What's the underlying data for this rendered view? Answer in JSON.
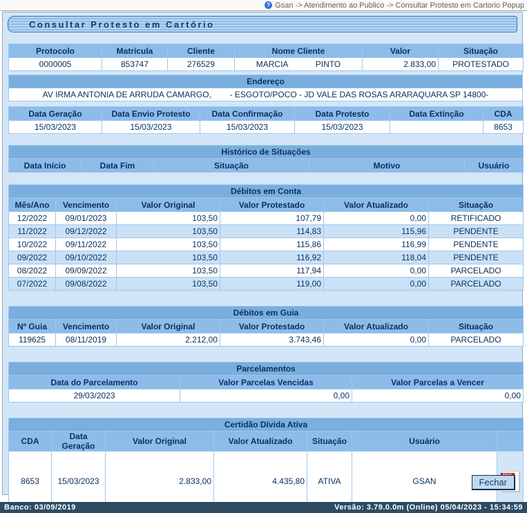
{
  "icons": {
    "help": "?"
  },
  "breadcrumb": {
    "text": "Gsan -> Atendimento ao Publico -> Consultar Protesto em Cartorio Popup"
  },
  "title": "Consultar Protesto em Cartório",
  "protesto": {
    "headers": [
      "Protocolo",
      "Matrícula",
      "Cliente",
      "Nome Cliente",
      "Valor",
      "Situação"
    ],
    "row": [
      "0000005",
      "853747",
      "276529",
      "MARCIA            PINTO",
      "2.833,00",
      "PROTESTADO"
    ]
  },
  "endereco": {
    "title": "Endereço",
    "value": "AV IRMA ANTONIA DE ARRUDA CAMARGO,        - ESGOTO/POCO - JD VALE DAS ROSAS ARARAQUARA SP 14800-"
  },
  "datas": {
    "headers": [
      "Data Geração",
      "Data Envio Protesto",
      "Data Confirmação",
      "Data Protesto",
      "Data Extinção",
      "CDA"
    ],
    "row": [
      "15/03/2023",
      "15/03/2023",
      "15/03/2023",
      "15/03/2023",
      "",
      "8653"
    ]
  },
  "historico": {
    "title": "Histórico de Situações",
    "headers": [
      "Data Início",
      "Data Fim",
      "Situação",
      "Motivo",
      "Usuário"
    ]
  },
  "debitos_conta": {
    "title": "Débitos em Conta",
    "headers": [
      "Mês/Ano",
      "Vencimento",
      "Valor Original",
      "Valor Protestado",
      "Valor Atualizado",
      "Situação"
    ],
    "rows": [
      [
        "12/2022",
        "09/01/2023",
        "103,50",
        "107,79",
        "0,00",
        "RETIFICADO"
      ],
      [
        "11/2022",
        "09/12/2022",
        "103,50",
        "114,83",
        "115,96",
        "PENDENTE"
      ],
      [
        "10/2022",
        "09/11/2022",
        "103,50",
        "115,86",
        "116,99",
        "PENDENTE"
      ],
      [
        "09/2022",
        "09/10/2022",
        "103,50",
        "116,92",
        "118,04",
        "PENDENTE"
      ],
      [
        "08/2022",
        "09/09/2022",
        "103,50",
        "117,94",
        "0,00",
        "PARCELADO"
      ],
      [
        "07/2022",
        "09/08/2022",
        "103,50",
        "119,00",
        "0,00",
        "PARCELADO"
      ]
    ]
  },
  "debitos_guia": {
    "title": "Débitos em Guia",
    "headers": [
      "Nº Guia",
      "Vencimento",
      "Valor Original",
      "Valor Protestado",
      "Valor Atualizado",
      "Situação"
    ],
    "rows": [
      [
        "119625",
        "08/11/2019",
        "2.212,00",
        "3.743,46",
        "0,00",
        "PARCELADO"
      ]
    ]
  },
  "parcelamentos": {
    "title": "Parcelamentos",
    "headers": [
      "Data do Parcelamento",
      "Valor Parcelas Vencidas",
      "Valor Parcelas a Vencer"
    ],
    "rows": [
      [
        "29/03/2023",
        "0,00",
        "0,00"
      ]
    ]
  },
  "cda": {
    "title": "Certidão Dívida Ativa",
    "headers": [
      "CDA",
      "Data\nGeração",
      "Valor Original",
      "Valor Atualizado",
      "Situação",
      "Usuário"
    ],
    "row": [
      "8653",
      "15/03/2023",
      "2.833,00",
      "4.435,80",
      "ATIVA",
      "GSAN"
    ],
    "pdf_icon_label": "PDF"
  },
  "buttons": {
    "fechar": "Fechar"
  },
  "footer": {
    "left": "Banco: 03/09/2019",
    "right": "Versão: 3.79.0.0m (Online) 05/04/2023 - 15:34:59"
  },
  "colors": {
    "page_bg": "#d3e6f7",
    "section_title_bg": "#79aede",
    "column_header_bg": "#8dbce9",
    "alt_row_bg": "#cae1f5",
    "footer_bg": "#2d4c63",
    "pdf_red": "#c40000"
  }
}
